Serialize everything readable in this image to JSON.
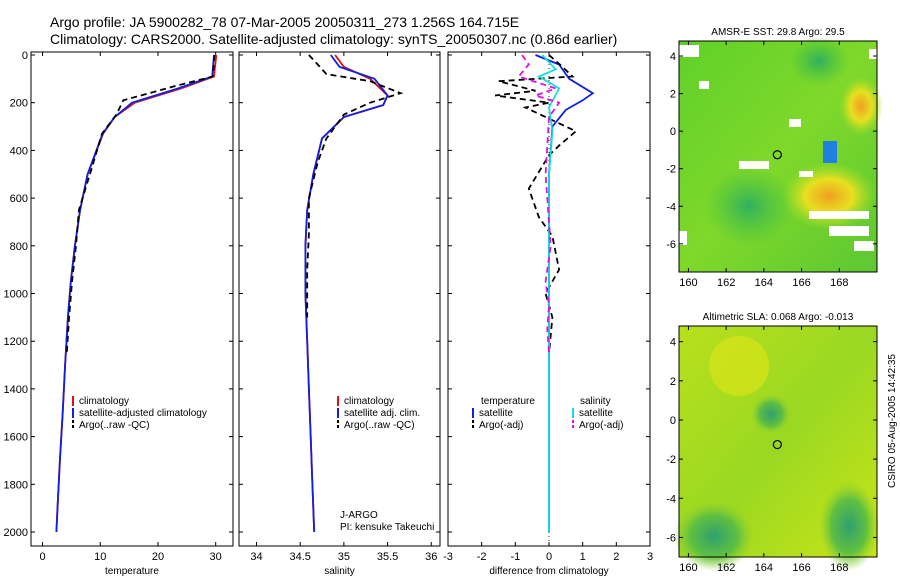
{
  "header": {
    "line1": "Argo profile: JA 5900282_78 07-Mar-2005 20050311_273 1.256S 164.715E",
    "line2": "Climatology: CARS2000. Satellite-adjusted climatology: synTS_20050307.nc (0.86d earlier)"
  },
  "colors": {
    "clim": "#e01010",
    "sat": "#1020e0",
    "argo": "#000000",
    "sal_sat": "#10e0e0",
    "sal_argo": "#e010e0"
  },
  "footer": "CSIRO 05-Aug-2005 14:42:35",
  "chart_data": [
    {
      "id": "temperature",
      "type": "line",
      "xlabel": "temperature",
      "xlim": [
        -2,
        33
      ],
      "xticks": [
        0,
        10,
        20,
        30
      ],
      "ylim": [
        0,
        2050
      ],
      "yticks": [
        0,
        200,
        400,
        600,
        800,
        1000,
        1200,
        1400,
        1600,
        1800,
        2000
      ],
      "legend": [
        "climatology",
        "satellite-adjusted climatology",
        "Argo(..raw -QC)"
      ],
      "series": [
        {
          "name": "climatology",
          "color": "clim",
          "dash": false,
          "x": [
            30.1,
            29.7,
            24,
            16,
            12.5,
            10.5,
            7.8,
            6.5,
            5.6,
            4.9,
            4.4,
            3.9,
            3.5,
            3.0,
            2.6,
            2.4
          ],
          "y": [
            0,
            90,
            140,
            200,
            260,
            330,
            500,
            650,
            800,
            950,
            1100,
            1300,
            1500,
            1700,
            1900,
            2000
          ]
        },
        {
          "name": "satellite-adjusted climatology",
          "color": "sat",
          "dash": false,
          "x": [
            29.7,
            29.4,
            23.5,
            15.5,
            12.5,
            10.4,
            7.8,
            6.5,
            5.6,
            4.9,
            4.4,
            3.9,
            3.5,
            3.0,
            2.6,
            2.4
          ],
          "y": [
            0,
            90,
            140,
            200,
            260,
            330,
            500,
            650,
            800,
            950,
            1100,
            1300,
            1500,
            1700,
            1900,
            2000
          ]
        },
        {
          "name": "Argo(..raw -QC)",
          "color": "argo",
          "dash": true,
          "x": [
            29.8,
            29.5,
            23,
            14,
            12.8,
            10.3,
            8.2,
            6.3,
            5.8,
            5.1,
            4.6,
            4.2
          ],
          "y": [
            0,
            90,
            130,
            190,
            250,
            330,
            500,
            650,
            800,
            950,
            1100,
            1250
          ]
        }
      ]
    },
    {
      "id": "salinity",
      "type": "line",
      "xlabel": "salinity",
      "xlim": [
        33.8,
        36.1
      ],
      "xticks": [
        34,
        34.5,
        35,
        35.5,
        36
      ],
      "ylim": [
        0,
        2050
      ],
      "legend": [
        "climatology",
        "satellite adj. clim.",
        "Argo(..raw -QC)"
      ],
      "annotations": [
        "J-ARGO",
        "PI: kensuke Takeuchi"
      ],
      "series": [
        {
          "name": "climatology",
          "color": "clim",
          "dash": false,
          "x": [
            34.9,
            35.0,
            35.3,
            35.5,
            35.45,
            35.0,
            34.75,
            34.65,
            34.58,
            34.56,
            34.56,
            34.58,
            34.6,
            34.62,
            34.64,
            34.66
          ],
          "y": [
            0,
            50,
            100,
            170,
            210,
            260,
            350,
            500,
            650,
            800,
            1000,
            1200,
            1400,
            1600,
            1800,
            2000
          ]
        },
        {
          "name": "satellite adj. clim.",
          "color": "sat",
          "dash": false,
          "x": [
            34.85,
            34.95,
            35.35,
            35.5,
            35.45,
            35.0,
            34.75,
            34.65,
            34.58,
            34.56,
            34.56,
            34.58,
            34.6,
            34.62,
            34.64,
            34.66
          ],
          "y": [
            0,
            50,
            100,
            170,
            210,
            260,
            350,
            500,
            650,
            800,
            1000,
            1200,
            1400,
            1600,
            1800,
            2000
          ]
        },
        {
          "name": "Argo(..raw -QC)",
          "color": "argo",
          "dash": true,
          "x": [
            34.6,
            34.7,
            34.8,
            35.3,
            35.65,
            35.3,
            35.0,
            34.8,
            34.7,
            34.6,
            34.6,
            34.58,
            34.58
          ],
          "y": [
            0,
            40,
            80,
            110,
            160,
            200,
            250,
            350,
            450,
            600,
            750,
            900,
            1100
          ]
        }
      ]
    },
    {
      "id": "difference",
      "type": "line",
      "xlabel": "difference from climatology",
      "xlim": [
        -3,
        3
      ],
      "xticks": [
        -3,
        -2,
        -1,
        0,
        1,
        2,
        3
      ],
      "ylim": [
        0,
        2050
      ],
      "legend_left_title": "temperature",
      "legend_right_title": "salinity",
      "legend": [
        "satellite",
        "Argo(-adj)",
        "satellite",
        "Argo(-adj)"
      ],
      "series": [
        {
          "name": "temperature satellite",
          "color": "sat",
          "dash": false,
          "x": [
            -0.4,
            0.3,
            0.6,
            1.3,
            1.0,
            0.5,
            0.1,
            0.05,
            0.0,
            0.0,
            0.0,
            0.0,
            0.0
          ],
          "y": [
            0,
            40,
            100,
            160,
            190,
            230,
            300,
            400,
            500,
            700,
            1000,
            1400,
            2000
          ]
        },
        {
          "name": "temperature Argo(-adj)",
          "color": "argo",
          "dash": true,
          "x": [
            0.0,
            0.4,
            0.7,
            -1.5,
            -0.4,
            -1.6,
            0.0,
            -0.7,
            0.2,
            0.8,
            0.3,
            0.0,
            -0.6,
            -0.3,
            0.1,
            0.3,
            -0.1,
            0.1,
            0.0
          ],
          "y": [
            0,
            50,
            90,
            110,
            150,
            170,
            200,
            220,
            280,
            320,
            380,
            420,
            560,
            680,
            760,
            900,
            1000,
            1100,
            1250
          ]
        },
        {
          "name": "salinity satellite",
          "color": "sal_sat",
          "dash": false,
          "x": [
            -0.2,
            0.2,
            -0.3,
            0.3,
            0.0,
            0.1,
            0.0,
            0.0,
            0.0
          ],
          "y": [
            0,
            60,
            90,
            140,
            220,
            320,
            500,
            1000,
            2000
          ]
        },
        {
          "name": "salinity Argo(-adj)",
          "color": "sal_argo",
          "dash": true,
          "x": [
            -0.8,
            -0.6,
            -0.9,
            0.2,
            -0.4,
            0.3,
            0.0,
            -0.1,
            0.05,
            -0.1,
            0.0,
            -0.05,
            0.0
          ],
          "y": [
            0,
            40,
            90,
            140,
            170,
            200,
            260,
            500,
            800,
            950,
            1050,
            1150,
            1250
          ]
        }
      ]
    },
    {
      "id": "sst-map",
      "type": "heatmap",
      "title": "AMSR-E SST: 29.8 Argo: 29.5",
      "xlim": [
        159.5,
        170
      ],
      "xticks": [
        160,
        162,
        164,
        166,
        168
      ],
      "ylim": [
        -7.5,
        4.8
      ],
      "yticks": [
        -6,
        -4,
        -2,
        0,
        2,
        4
      ],
      "marker": [
        164.715,
        -1.256
      ]
    },
    {
      "id": "sla-map",
      "type": "heatmap",
      "title": "Altimetric SLA: 0.068 Argo: -0.013",
      "xlim": [
        159.5,
        170
      ],
      "xticks": [
        160,
        162,
        164,
        166,
        168
      ],
      "ylim": [
        -7,
        4.8
      ],
      "yticks": [
        -6,
        -4,
        -2,
        0,
        2,
        4
      ],
      "marker": [
        164.715,
        -1.256
      ]
    }
  ]
}
